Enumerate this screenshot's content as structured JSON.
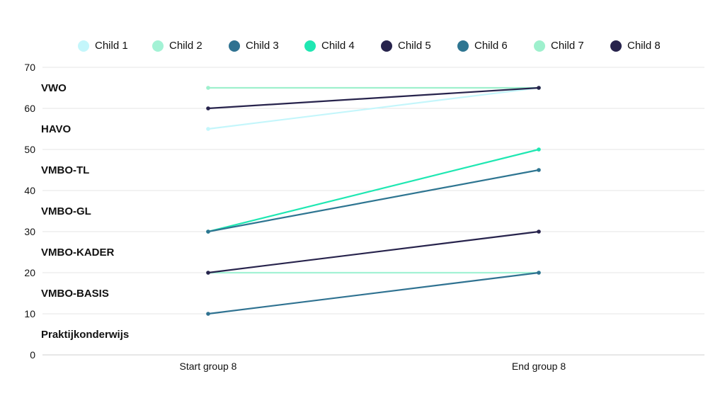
{
  "chart_data": {
    "type": "line",
    "categories": [
      "Start group 8",
      "End group 8"
    ],
    "ylim": [
      0,
      70
    ],
    "yticks": [
      0,
      10,
      20,
      30,
      40,
      50,
      60,
      70
    ],
    "grid": true,
    "legend_position": "top",
    "series": [
      {
        "name": "Child 1",
        "color": "#c4f6fb",
        "values": [
          55,
          65
        ]
      },
      {
        "name": "Child 2",
        "color": "#a3f2d5",
        "values": [
          20,
          20
        ]
      },
      {
        "name": "Child 3",
        "color": "#2f7291",
        "values": [
          10,
          20
        ]
      },
      {
        "name": "Child 4",
        "color": "#1fe7b2",
        "values": [
          30,
          50
        ]
      },
      {
        "name": "Child 5",
        "color": "#27234c",
        "values": [
          20,
          30
        ]
      },
      {
        "name": "Child 6",
        "color": "#2e7591",
        "values": [
          30,
          45
        ]
      },
      {
        "name": "Child 7",
        "color": "#9ef0cd",
        "values": [
          65,
          65
        ]
      },
      {
        "name": "Child 8",
        "color": "#27234c",
        "values": [
          60,
          65
        ]
      }
    ],
    "level_labels": [
      {
        "label": "VWO",
        "y": 65
      },
      {
        "label": "HAVO",
        "y": 55
      },
      {
        "label": "VMBO-TL",
        "y": 45
      },
      {
        "label": "VMBO-GL",
        "y": 35
      },
      {
        "label": "VMBO-KADER",
        "y": 25
      },
      {
        "label": "VMBO-BASIS",
        "y": 15
      },
      {
        "label": "Praktijkonderwijs",
        "y": 5
      }
    ]
  }
}
